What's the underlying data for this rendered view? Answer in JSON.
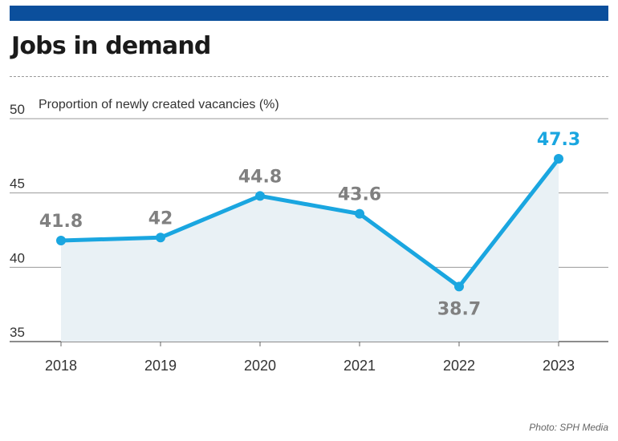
{
  "header": {
    "title": "Jobs in demand"
  },
  "footer": {
    "credit": "Photo: SPH Media"
  },
  "colors": {
    "brand_bar": "#0b4f9c",
    "line": "#1aa6e0",
    "highlight_label": "#1aa6e0",
    "label": "#808080",
    "area": "#e9f1f5",
    "grid": "#9a9a9a"
  },
  "chart_data": {
    "type": "line",
    "title": "Jobs in demand",
    "ylabel": "Proportion of newly created vacancies (%)",
    "xlabel": "",
    "categories": [
      "2018",
      "2019",
      "2020",
      "2021",
      "2022",
      "2023"
    ],
    "series": [
      {
        "name": "Proportion of newly created vacancies (%)",
        "values": [
          41.8,
          42,
          44.8,
          43.6,
          38.7,
          47.3
        ]
      }
    ],
    "data_labels": [
      "41.8",
      "42",
      "44.8",
      "43.6",
      "38.7",
      "47.3"
    ],
    "highlight_index": 5,
    "ylim": [
      35,
      50
    ],
    "yticks": [
      35,
      40,
      45,
      50
    ],
    "ytick_labels": [
      "35",
      "40",
      "45",
      "50"
    ],
    "grid": true,
    "area_fill": true
  }
}
